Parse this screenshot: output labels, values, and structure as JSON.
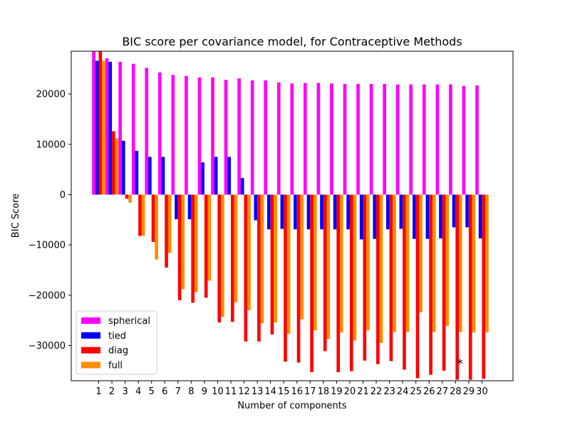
{
  "chart_data": {
    "type": "bar",
    "title": "BIC score per covariance model, for Contraceptive Methods",
    "xlabel": "Number of components",
    "ylabel": "BIC Score",
    "categories": [
      "1",
      "2",
      "3",
      "4",
      "5",
      "6",
      "7",
      "8",
      "9",
      "10",
      "11",
      "12",
      "13",
      "14",
      "15",
      "16",
      "17",
      "18",
      "19",
      "20",
      "21",
      "22",
      "23",
      "24",
      "25",
      "26",
      "27",
      "28",
      "29",
      "30"
    ],
    "ylim": [
      -37000,
      28500
    ],
    "yticks": [
      -30000,
      -20000,
      -10000,
      0,
      10000,
      20000
    ],
    "grid": false,
    "legend_position": "lower-left",
    "series": [
      {
        "name": "spherical",
        "color": "#ff00ff",
        "values": [
          28500,
          27100,
          26400,
          26000,
          25200,
          24300,
          23800,
          23600,
          23300,
          23300,
          22800,
          23100,
          22700,
          22700,
          22300,
          22100,
          22200,
          22200,
          22100,
          22000,
          22000,
          22000,
          22000,
          21900,
          21900,
          21900,
          21900,
          21900,
          21600,
          21700
        ]
      },
      {
        "name": "tied",
        "color": "#0000ff",
        "values": [
          26600,
          26400,
          10700,
          8700,
          7500,
          7500,
          -4900,
          -4900,
          6400,
          7500,
          7500,
          3300,
          -5100,
          -6900,
          -6800,
          -6900,
          -6900,
          -6900,
          -6900,
          -6900,
          -8900,
          -8800,
          -6900,
          -6800,
          -8800,
          -8800,
          -8700,
          -6500,
          -6500,
          -8700
        ]
      },
      {
        "name": "diag",
        "color": "#ff0000",
        "values": [
          28500,
          12600,
          -800,
          -8200,
          -9400,
          -14500,
          -21000,
          -21500,
          -20500,
          -25400,
          -25300,
          -29200,
          -29200,
          -27800,
          -33200,
          -33400,
          -35300,
          -31100,
          -35300,
          -35100,
          -33000,
          -33700,
          -33100,
          -34800,
          -36500,
          -35800,
          -35000,
          -36800,
          -36800,
          -36600
        ]
      },
      {
        "name": "full",
        "color": "#ff8c00",
        "values": [
          26600,
          11200,
          -1600,
          -8200,
          -12900,
          -11600,
          -18800,
          -19400,
          -17100,
          -24300,
          -21400,
          -23000,
          -25600,
          -25400,
          -27700,
          -24800,
          -27000,
          -28700,
          -27400,
          -29000,
          -27000,
          -29500,
          -27300,
          -27300,
          -23400,
          -27300,
          -26100,
          -27300,
          -27400,
          -27400
        ]
      }
    ],
    "annotation": {
      "text": "*",
      "category": "28"
    }
  }
}
